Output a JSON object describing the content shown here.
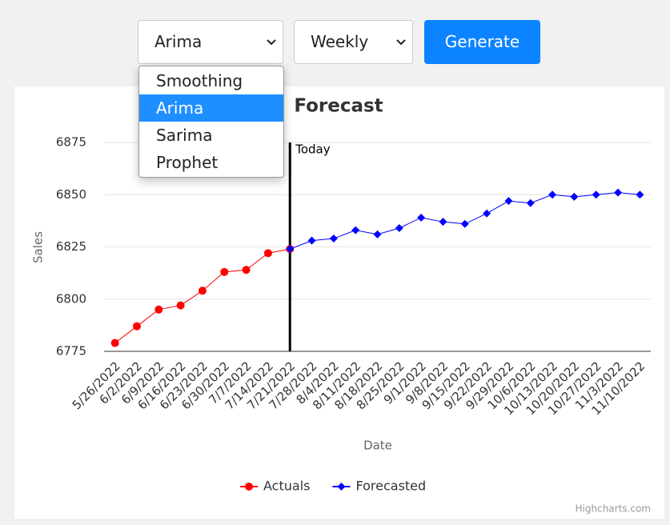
{
  "controls": {
    "model_select": "Arima",
    "model_options": [
      "Smoothing",
      "Arima",
      "Sarima",
      "Prophet"
    ],
    "frequency_select": "Weekly",
    "button": "Generate"
  },
  "chart_data": {
    "type": "line",
    "title": "Forecast",
    "x_label": "Date",
    "y_label": "Sales",
    "categories": [
      "5/26/2022",
      "6/2/2022",
      "6/9/2022",
      "6/16/2022",
      "6/23/2022",
      "6/30/2022",
      "7/7/2022",
      "7/14/2022",
      "7/21/2022",
      "7/28/2022",
      "8/4/2022",
      "8/11/2022",
      "8/18/2022",
      "8/25/2022",
      "9/1/2022",
      "9/8/2022",
      "9/15/2022",
      "9/22/2022",
      "9/29/2022",
      "10/6/2022",
      "10/13/2022",
      "10/20/2022",
      "10/27/2022",
      "11/3/2022",
      "11/10/2022"
    ],
    "series": [
      {
        "name": "Actuals",
        "color": "#ff0000",
        "marker": "circle",
        "values": [
          6779,
          6787,
          6795,
          6797,
          6804,
          6813,
          6814,
          6822,
          6824,
          null,
          null,
          null,
          null,
          null,
          null,
          null,
          null,
          null,
          null,
          null,
          null,
          null,
          null,
          null,
          null
        ]
      },
      {
        "name": "Forecasted",
        "color": "#0000ff",
        "marker": "diamond",
        "values": [
          null,
          null,
          null,
          null,
          null,
          null,
          null,
          null,
          6824,
          6828,
          6829,
          6833,
          6831,
          6834,
          6839,
          6837,
          6836,
          6841,
          6847,
          6846,
          6850,
          6849,
          6850,
          6851,
          6850
        ]
      }
    ],
    "ylim": [
      6775,
      6875
    ],
    "yticks": [
      6775,
      6800,
      6825,
      6850,
      6875
    ],
    "grid": true,
    "plot_line": {
      "category": "7/21/2022",
      "label": "Today",
      "color": "#000000"
    },
    "legend": "bottom",
    "credits": "Highcharts.com"
  }
}
